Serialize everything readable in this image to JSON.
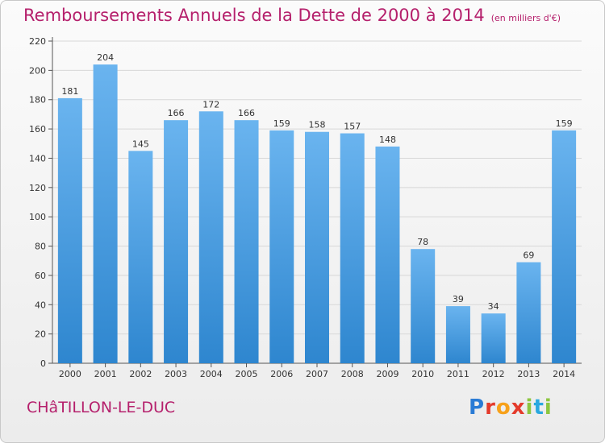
{
  "header": {
    "title": "Remboursements Annuels de la Dette de 2000 à 2014",
    "unit": "(en milliers d'€)"
  },
  "footer": {
    "city": "CHâTILLON-LE-DUC",
    "logo_letters": [
      "P",
      "r",
      "o",
      "x",
      "i",
      "t",
      "i"
    ],
    "logo_colors": [
      "#2a7bd5",
      "#e43b2c",
      "#f7a11a",
      "#e43b2c",
      "#8cc63f",
      "#29a8df",
      "#8cc63f"
    ]
  },
  "colors": {
    "bar_light": "#6ab4ef",
    "bar_dark": "#2e86cf",
    "title": "#b5206c",
    "grid": "#d8d8d8"
  },
  "chart_data": {
    "type": "bar",
    "categories": [
      "2000",
      "2001",
      "2002",
      "2003",
      "2004",
      "2005",
      "2006",
      "2007",
      "2008",
      "2009",
      "2010",
      "2011",
      "2012",
      "2013",
      "2014"
    ],
    "values": [
      181,
      204,
      145,
      166,
      172,
      166,
      159,
      158,
      157,
      148,
      78,
      39,
      34,
      69,
      159
    ],
    "ylim": [
      0,
      220
    ],
    "yticks": [
      0,
      20,
      40,
      60,
      80,
      100,
      120,
      140,
      160,
      180,
      200,
      220
    ],
    "grid": true
  }
}
